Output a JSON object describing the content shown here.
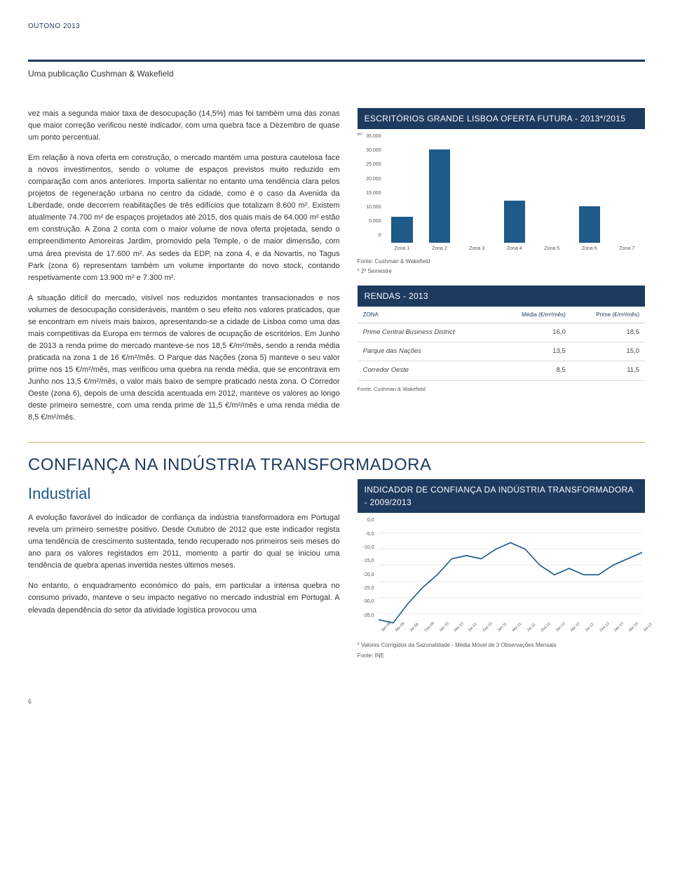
{
  "header": {
    "period": "OUTONO 2013",
    "publication": "Uma publicação Cushman & Wakefield"
  },
  "main": {
    "p1": "vez mais a segunda maior taxa de desocupação (14,5%) mas foi também uma das zonas que maior correção verificou neste indicador, com uma quebra face a Dezembro de quase um ponto percentual.",
    "p2": "Em relação à nova oferta em construção, o mercado mantém uma postura cautelosa face a novos investimentos, sendo o volume de espaços previstos muito reduzido em comparação com anos anteriores. Importa salientar no entanto uma tendência clara pelos projetos de regeneração urbana no centro da cidade, como é o caso da Avenida da Liberdade, onde decorrem reabilitações de três edifícios que totalizam 8.600 m². Existem atualmente 74.700 m² de espaços projetados até 2015, dos quais mais de 64.000 m² estão em construção. A Zona 2 conta com o maior volume de nova oferta projetada, sendo o empreendimento Amoreiras Jardim, promovido pela Temple, o de maior dimensão, com uma área prevista de 17.600 m². As sedes da EDP, na zona 4, e da Novartis, no Tagus Park (zona 6) representam também um volume importante do novo stock, contando respetivamente com 13.900 m² e 7.300 m².",
    "p3": "A situação difícil do mercado, visível nos reduzidos montantes transacionados e nos volumes de desocupação consideráveis, mantém o seu efeito nos valores praticados, que se encontram em níveis mais baixos, apresentando-se a cidade de Lisboa como uma das mais competitivas da Europa em termos de valores de ocupação de escritórios. Em Junho de 2013 a renda prime do mercado manteve-se nos 18,5 €/m²/mês, sendo a renda média praticada na zona 1 de 16 €/m²/mês. O Parque das Nações (zona 5) manteve o seu valor prime nos 15 €/m²/mês, mas verificou uma quebra na renda média, que se encontrava em Junho nos 13,5 €/m²/mês, o valor mais baixo de sempre praticado nesta zona. O Corredor Oeste (zona 6), depois de uma descida acentuada em 2012, manteve os valores ao longo deste primeiro semestre, com uma renda prime de 11,5 €/m²/mês e uma renda média de 8,5 €/m²/mês."
  },
  "chart1": {
    "title": "ESCRITÓRIOS GRANDE LISBOA OFERTA FUTURA - 2013*/2015",
    "type": "bar",
    "y_unit": "m²",
    "y_ticks": [
      "35.000",
      "30.000",
      "25.000",
      "20.000",
      "15.000",
      "10.000",
      "5.000",
      "0"
    ],
    "y_max": 35000,
    "categories": [
      "Zona 1",
      "Zona 2",
      "Zona 3",
      "Zona 4",
      "Zona 5",
      "Zona 6",
      "Zona 7"
    ],
    "values": [
      8600,
      31000,
      0,
      14000,
      0,
      12000,
      0
    ],
    "bar_color": "#1e5a8a",
    "background": "#ffffff",
    "label_fontsize": 7,
    "foot1": "Fonte: Cushman & Wakefield",
    "foot2": "* 2º Semestre"
  },
  "rendas": {
    "title": "RENDAS - 2013",
    "header_bg": "#1e3a5f",
    "col_zone": "ZONA",
    "col_media": "Média (€/m²/mês)",
    "col_prime": "Prime (€/m²/mês)",
    "rows": [
      {
        "zone": "Prime Central Business District",
        "media": "16,0",
        "prime": "18,5"
      },
      {
        "zone": "Parque das Nações",
        "media": "13,5",
        "prime": "15,0"
      },
      {
        "zone": "Corredor Oeste",
        "media": "8,5",
        "prime": "11,5"
      }
    ],
    "foot": "Fonte: Cushman & Wakefield"
  },
  "industrial": {
    "heading": "CONFIANÇA NA INDÚSTRIA TRANSFORMADORA",
    "sub": "Industrial",
    "p1": "A evolução favorável do indicador de confiança da indústria transformadora em Portugal revela um primeiro semestre positivo. Desde Outubro de 2012 que este indicador regista uma tendência de crescimento sustentada, tendo recuperado nos primeiros seis meses do ano para os valores registados em 2011, momento a partir do qual se iniciou uma tendência de quebra apenas invertida nestes últimos meses.",
    "p2": "No entanto, o enquadramento económico do país, em particular a intensa quebra no consumo privado, manteve o seu impacto negativo no mercado industrial em Portugal. A elevada dependência do setor da atividade logística provocou uma"
  },
  "chart2": {
    "title": "INDICADOR DE CONFIANÇA DA INDÚSTRIA TRANSFORMADORA - 2009/2013",
    "type": "line",
    "y_ticks": [
      "0,0",
      "-5,0",
      "-10,0",
      "-15,0",
      "-20,0",
      "-25,0",
      "-30,0",
      "-35,0"
    ],
    "y_min": -35,
    "y_max": 0,
    "x_labels": [
      "Jan-09",
      "Abr-09",
      "Jul-09",
      "Out-09",
      "Jan-10",
      "Abr-10",
      "Jul-10",
      "Out-10",
      "Jan-11",
      "Abr-11",
      "Jul-11",
      "Out-11",
      "Jan-12",
      "Abr-12",
      "Jul-12",
      "Out-12",
      "Jan-13",
      "Abr-13",
      "Jul-13"
    ],
    "values": [
      -32,
      -33,
      -27,
      -22,
      -18,
      -13,
      -12,
      -13,
      -10,
      -8,
      -10,
      -15,
      -18,
      -16,
      -18,
      -18,
      -15,
      -13,
      -11
    ],
    "line_color": "#1e5a8a",
    "grid_color": "#dddddd",
    "background": "#ffffff",
    "foot1": "* Valores Corrigidos da Sazonalidade - Média Móvel de 3 Observações Mensais",
    "foot2": "Fonte: INE"
  },
  "page_number": "6"
}
